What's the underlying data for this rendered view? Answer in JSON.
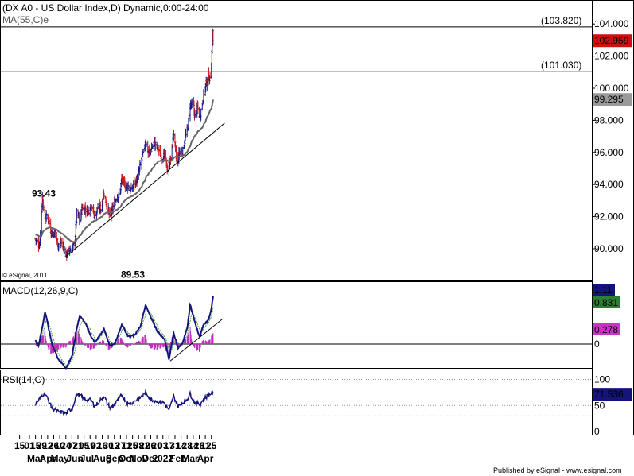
{
  "chart_data": {
    "type": "candlestick",
    "title": "(DX A0 - US Dollar Index,D) Dynamic,0:00-24:00",
    "ma_label": "MA(55,C)e",
    "copyright": "© eSignal, 2011",
    "publisher": "Published by eSignal - www.esignal.com",
    "price_axis": {
      "ticks": [
        "104.000",
        "102.000",
        "100.000",
        "98.000",
        "96.000",
        "94.000",
        "92.000",
        "90.000"
      ],
      "range": [
        88.4,
        104.8
      ]
    },
    "last_price": "102.959",
    "ma_last": "99.295",
    "horizontal_levels": [
      {
        "value": 103.82,
        "label": "(103.820)"
      },
      {
        "value": 101.03,
        "label": "(101.030)"
      }
    ],
    "annotations": [
      {
        "text": "93.43",
        "value": 93.43
      },
      {
        "text": "89.53",
        "value": 89.53
      }
    ],
    "trendline": {
      "from": {
        "date": "2021-05-25",
        "value": 89.53
      },
      "to": {
        "date": "2022-04-28",
        "value": 97.9
      }
    },
    "price_anchors": [
      [
        "2021-03-15",
        90.6
      ],
      [
        "2021-03-24",
        90.2
      ],
      [
        "2021-03-31",
        93.2
      ],
      [
        "2021-04-06",
        92.0
      ],
      [
        "2021-04-13",
        91.9
      ],
      [
        "2021-04-22",
        90.9
      ],
      [
        "2021-04-29",
        91.0
      ],
      [
        "2021-05-07",
        90.2
      ],
      [
        "2021-05-14",
        90.4
      ],
      [
        "2021-05-25",
        89.6
      ],
      [
        "2021-06-01",
        89.9
      ],
      [
        "2021-06-08",
        90.0
      ],
      [
        "2021-06-14",
        90.4
      ],
      [
        "2021-06-18",
        92.2
      ],
      [
        "2021-06-25",
        91.8
      ],
      [
        "2021-07-01",
        92.6
      ],
      [
        "2021-07-07",
        92.5
      ],
      [
        "2021-07-14",
        92.3
      ],
      [
        "2021-07-21",
        92.8
      ],
      [
        "2021-07-30",
        92.0
      ],
      [
        "2021-08-06",
        92.6
      ],
      [
        "2021-08-13",
        92.5
      ],
      [
        "2021-08-20",
        93.5
      ],
      [
        "2021-08-27",
        92.6
      ],
      [
        "2021-09-03",
        92.0
      ],
      [
        "2021-09-10",
        92.6
      ],
      [
        "2021-09-17",
        93.2
      ],
      [
        "2021-09-24",
        93.3
      ],
      [
        "2021-09-30",
        94.3
      ],
      [
        "2021-10-08",
        94.0
      ],
      [
        "2021-10-15",
        93.9
      ],
      [
        "2021-10-22",
        93.6
      ],
      [
        "2021-10-29",
        94.1
      ],
      [
        "2021-11-05",
        94.3
      ],
      [
        "2021-11-12",
        95.2
      ],
      [
        "2021-11-19",
        96.0
      ],
      [
        "2021-11-24",
        96.7
      ],
      [
        "2021-11-30",
        96.0
      ],
      [
        "2021-12-07",
        96.2
      ],
      [
        "2021-12-14",
        96.6
      ],
      [
        "2021-12-21",
        96.3
      ],
      [
        "2021-12-31",
        95.7
      ],
      [
        "2022-01-07",
        95.8
      ],
      [
        "2022-01-14",
        94.9
      ],
      [
        "2022-01-21",
        95.6
      ],
      [
        "2022-01-28",
        97.2
      ],
      [
        "2022-02-04",
        95.4
      ],
      [
        "2022-02-11",
        96.0
      ],
      [
        "2022-02-18",
        96.1
      ],
      [
        "2022-02-24",
        97.0
      ],
      [
        "2022-03-01",
        97.4
      ],
      [
        "2022-03-07",
        99.0
      ],
      [
        "2022-03-14",
        99.0
      ],
      [
        "2022-03-18",
        98.2
      ],
      [
        "2022-03-24",
        98.8
      ],
      [
        "2022-03-29",
        98.2
      ],
      [
        "2022-04-01",
        98.6
      ],
      [
        "2022-04-07",
        99.6
      ],
      [
        "2022-04-13",
        100.3
      ],
      [
        "2022-04-18",
        100.8
      ],
      [
        "2022-04-21",
        100.6
      ],
      [
        "2022-04-25",
        101.5
      ],
      [
        "2022-04-27",
        102.9
      ],
      [
        "2022-04-28",
        103.5
      ],
      [
        "2022-04-29",
        102.96
      ]
    ],
    "macd": {
      "label": "MACD(12,26,9,C)",
      "values": {
        "macd": "1.11",
        "signal": "0.831",
        "histogram": "0.278"
      },
      "zero_label": "0",
      "macd_anchors": [
        [
          "2021-03-15",
          0.08
        ],
        [
          "2021-03-22",
          -0.05
        ],
        [
          "2021-03-31",
          0.4
        ],
        [
          "2021-04-06",
          0.75
        ],
        [
          "2021-04-22",
          0.0
        ],
        [
          "2021-05-07",
          -0.35
        ],
        [
          "2021-05-25",
          -0.55
        ],
        [
          "2021-06-08",
          -0.25
        ],
        [
          "2021-06-18",
          0.35
        ],
        [
          "2021-06-25",
          0.65
        ],
        [
          "2021-07-07",
          0.5
        ],
        [
          "2021-07-21",
          0.18
        ],
        [
          "2021-07-30",
          0.05
        ],
        [
          "2021-08-06",
          0.12
        ],
        [
          "2021-08-20",
          0.35
        ],
        [
          "2021-09-03",
          -0.05
        ],
        [
          "2021-09-14",
          0.0
        ],
        [
          "2021-09-30",
          0.45
        ],
        [
          "2021-10-15",
          0.18
        ],
        [
          "2021-10-29",
          0.2
        ],
        [
          "2021-11-12",
          0.4
        ],
        [
          "2021-11-24",
          0.9
        ],
        [
          "2021-12-07",
          0.6
        ],
        [
          "2021-12-21",
          0.3
        ],
        [
          "2022-01-07",
          0.1
        ],
        [
          "2022-01-17",
          -0.35
        ],
        [
          "2022-01-28",
          0.25
        ],
        [
          "2022-02-07",
          -0.1
        ],
        [
          "2022-02-16",
          0.0
        ],
        [
          "2022-02-28",
          0.35
        ],
        [
          "2022-03-07",
          0.9
        ],
        [
          "2022-03-18",
          0.5
        ],
        [
          "2022-03-29",
          0.15
        ],
        [
          "2022-04-07",
          0.45
        ],
        [
          "2022-04-18",
          0.55
        ],
        [
          "2022-04-25",
          0.8
        ],
        [
          "2022-04-29",
          1.11
        ]
      ],
      "trendline": {
        "from": {
          "date": "2022-01-20",
          "value": -0.35
        },
        "to": {
          "date": "2022-04-29",
          "value": 0.65
        }
      }
    },
    "rsi": {
      "label": "RSI(14,C)",
      "value": "71.536",
      "ticks": [
        "100",
        "50",
        "0"
      ],
      "rsi_anchors": [
        [
          "2021-03-15",
          52
        ],
        [
          "2021-03-31",
          70
        ],
        [
          "2021-04-06",
          73
        ],
        [
          "2021-04-22",
          45
        ],
        [
          "2021-05-07",
          38
        ],
        [
          "2021-05-25",
          35
        ],
        [
          "2021-06-08",
          45
        ],
        [
          "2021-06-18",
          72
        ],
        [
          "2021-06-25",
          70
        ],
        [
          "2021-07-07",
          62
        ],
        [
          "2021-07-21",
          60
        ],
        [
          "2021-07-30",
          48
        ],
        [
          "2021-08-06",
          55
        ],
        [
          "2021-08-20",
          68
        ],
        [
          "2021-09-03",
          45
        ],
        [
          "2021-09-14",
          52
        ],
        [
          "2021-09-30",
          70
        ],
        [
          "2021-10-15",
          52
        ],
        [
          "2021-10-29",
          58
        ],
        [
          "2021-11-12",
          65
        ],
        [
          "2021-11-24",
          74
        ],
        [
          "2021-12-07",
          62
        ],
        [
          "2021-12-21",
          58
        ],
        [
          "2022-01-07",
          55
        ],
        [
          "2022-01-17",
          40
        ],
        [
          "2022-01-28",
          68
        ],
        [
          "2022-02-07",
          48
        ],
        [
          "2022-02-16",
          55
        ],
        [
          "2022-02-28",
          62
        ],
        [
          "2022-03-07",
          72
        ],
        [
          "2022-03-18",
          55
        ],
        [
          "2022-03-29",
          52
        ],
        [
          "2022-04-07",
          62
        ],
        [
          "2022-04-18",
          70
        ],
        [
          "2022-04-25",
          74
        ],
        [
          "2022-04-29",
          71.5
        ]
      ]
    },
    "x_axis": {
      "day_ticks": [
        "15",
        "01",
        "15",
        "29",
        "12",
        "26",
        "10",
        "24",
        "07",
        "21",
        "05",
        "19",
        "02",
        "16",
        "30",
        "13",
        "27",
        "11",
        "25",
        "08",
        "22",
        "06",
        "20",
        "03",
        "17",
        "31",
        "14",
        "28",
        "14",
        "28",
        "11",
        "25"
      ],
      "day_dates": [
        "2021-03-15",
        "2021-03-01",
        "2021-03-15",
        "2021-03-29",
        "2021-04-12",
        "2021-04-26",
        "2021-05-10",
        "2021-05-24",
        "2021-06-07",
        "2021-06-21",
        "2021-07-05",
        "2021-07-19",
        "2021-08-02",
        "2021-08-16",
        "2021-08-30",
        "2021-09-13",
        "2021-09-27",
        "2021-10-11",
        "2021-10-25",
        "2021-11-08",
        "2021-11-22",
        "2021-12-06",
        "2021-12-20",
        "2022-01-03",
        "2022-01-17",
        "2022-01-31",
        "2022-02-14",
        "2022-02-28",
        "2022-03-14",
        "2022-03-28",
        "2022-04-11",
        "2022-04-25"
      ],
      "months": [
        {
          "label": "Mar",
          "date": "2021-03-15"
        },
        {
          "label": "Apr",
          "date": "2021-04-12"
        },
        {
          "label": "May",
          "date": "2021-05-10"
        },
        {
          "label": "Jun",
          "date": "2021-06-14"
        },
        {
          "label": "Jul",
          "date": "2021-07-12"
        },
        {
          "label": "Aug",
          "date": "2021-08-16"
        },
        {
          "label": "Sep",
          "date": "2021-09-13"
        },
        {
          "label": "Oct",
          "date": "2021-10-11"
        },
        {
          "label": "Nov",
          "date": "2021-11-08"
        },
        {
          "label": "Dec",
          "date": "2021-12-06"
        },
        {
          "label": "2022",
          "date": "2022-01-03"
        },
        {
          "label": "Feb",
          "date": "2022-02-07"
        },
        {
          "label": "Mar",
          "date": "2022-03-07"
        },
        {
          "label": "Apr",
          "date": "2022-04-11"
        }
      ]
    },
    "colors": {
      "up": "#1c1c8c",
      "down": "#cc1b1b",
      "ma": "#666666",
      "macd": "#14147a",
      "signal": "#4aa04a",
      "histogram": "#c030c0",
      "rsi": "#14147a",
      "last_price_bg": "#cc1111",
      "macd_bg": "#14147a",
      "signal_bg": "#2e7d32",
      "hist_bg": "#cc33cc",
      "rsi_bg": "#14147a"
    }
  }
}
